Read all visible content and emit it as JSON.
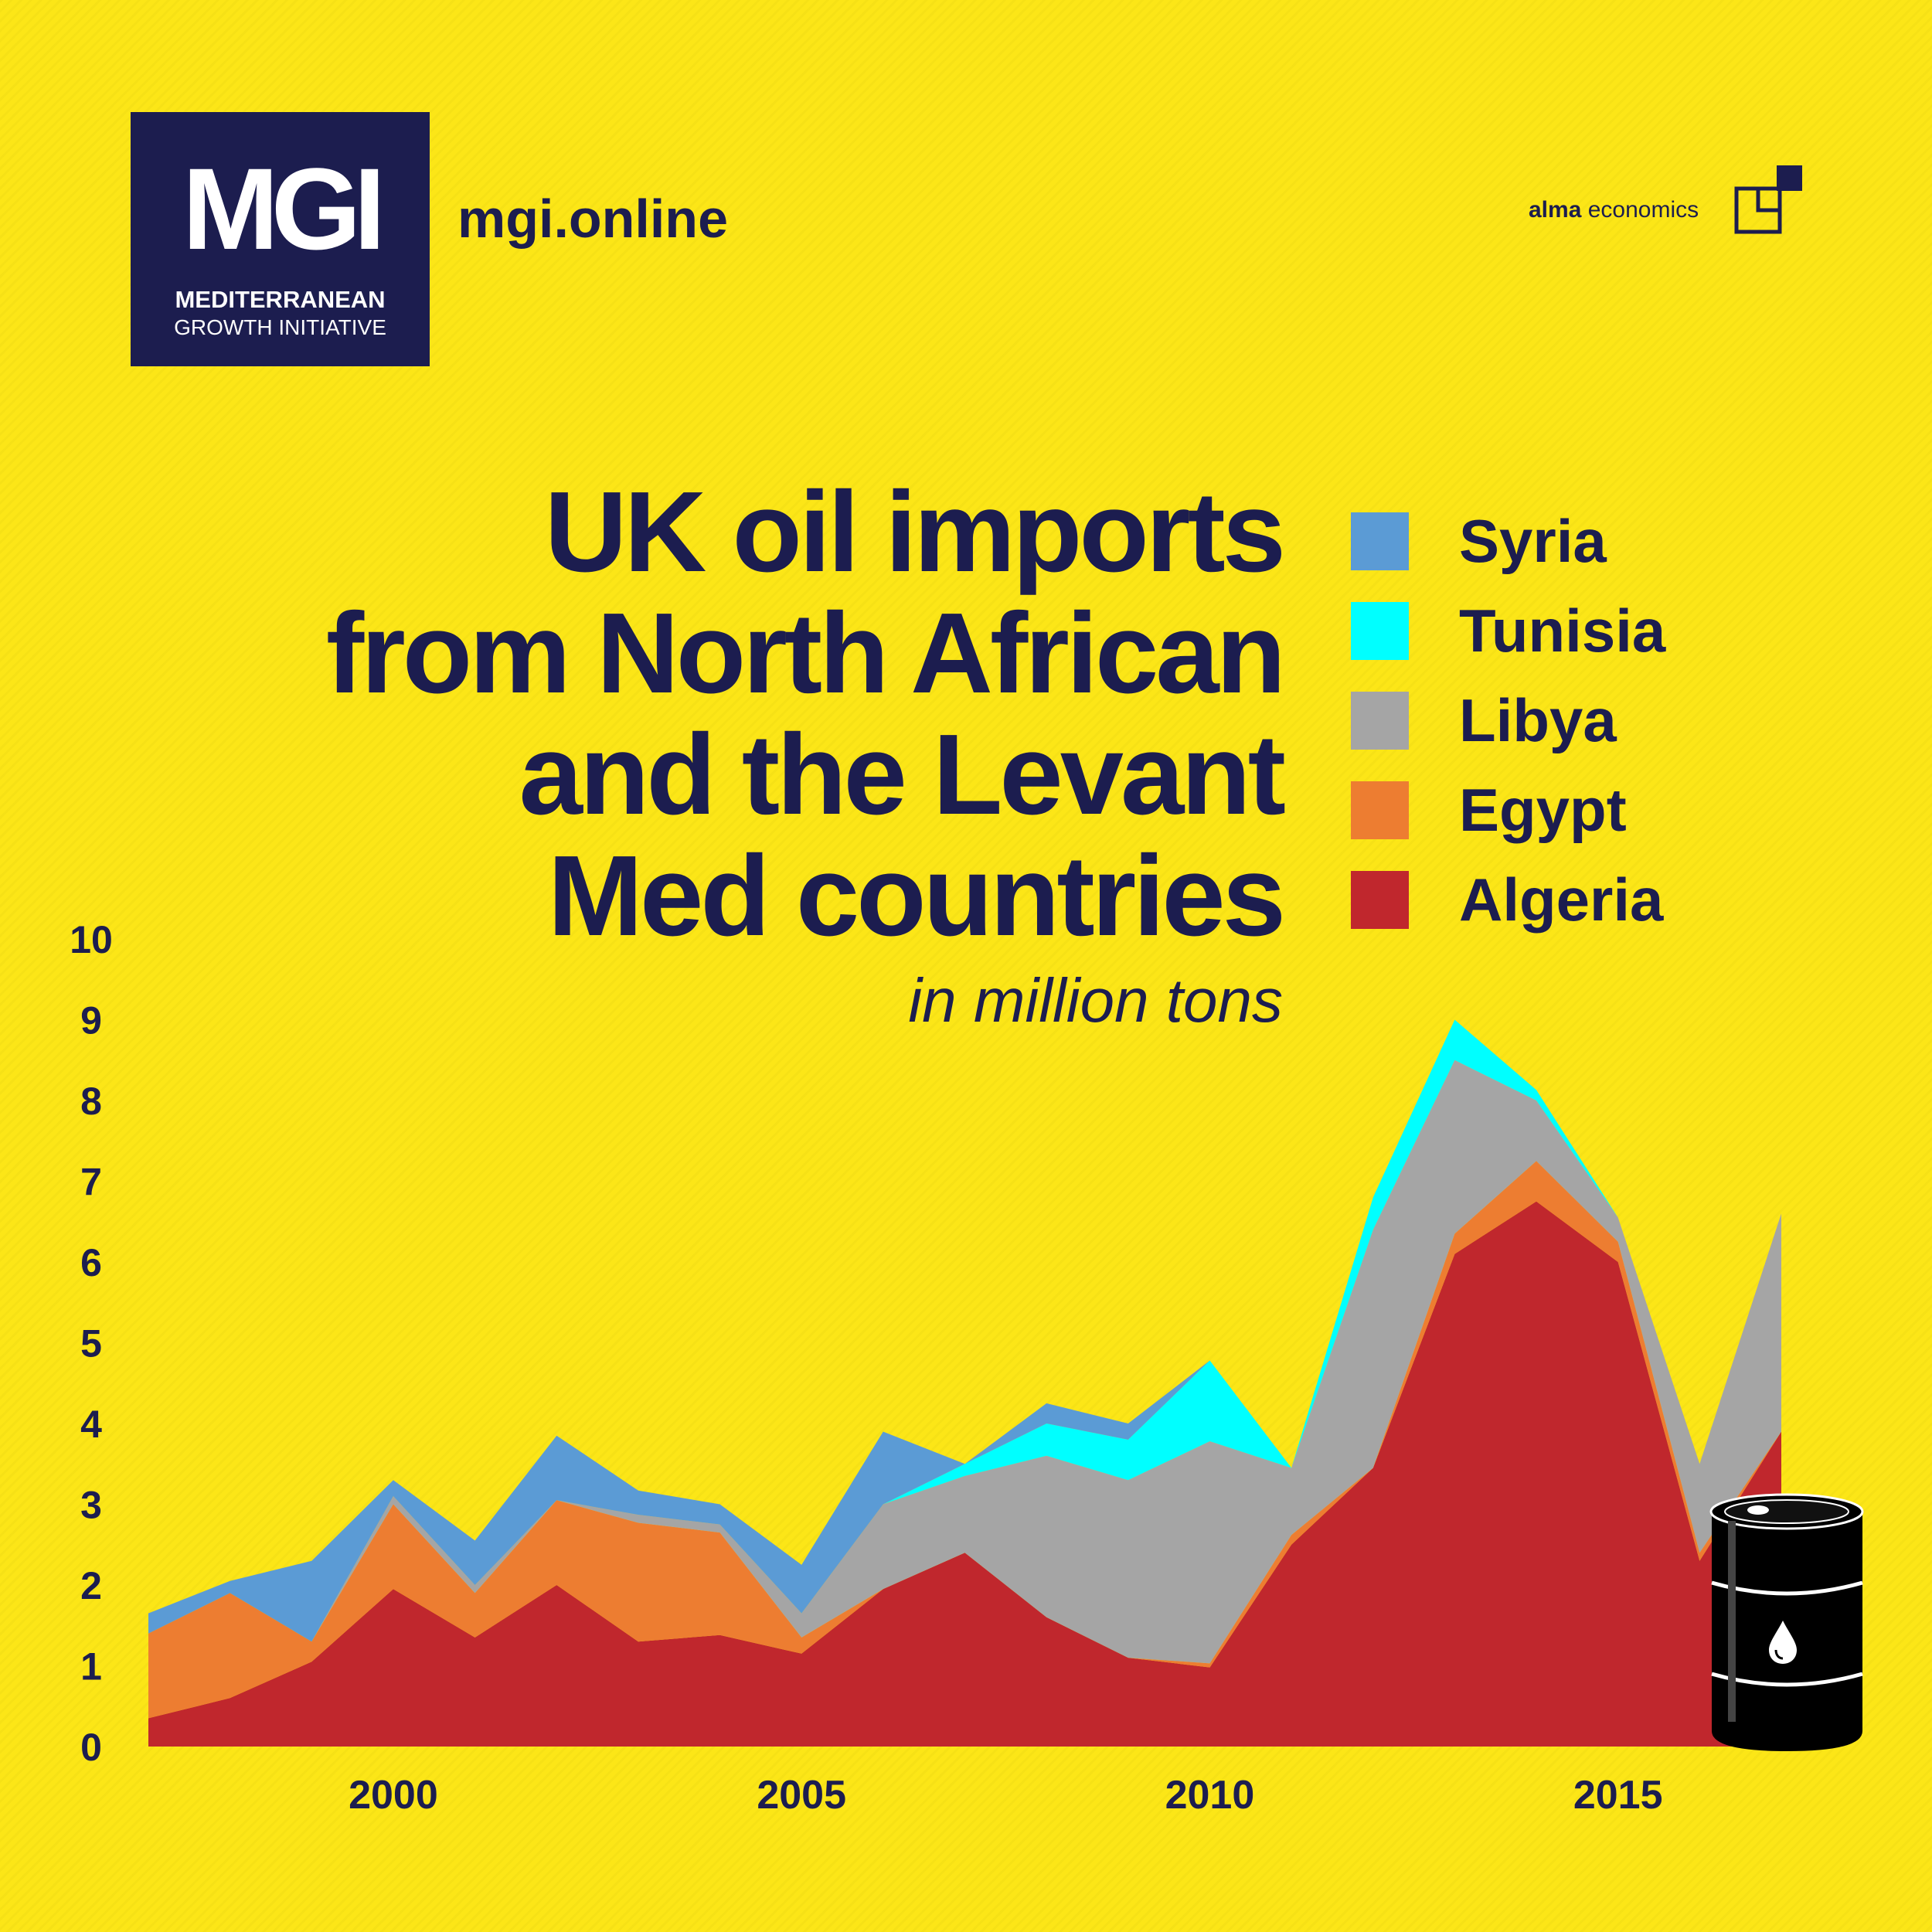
{
  "header": {
    "logo_mark": "MGI",
    "logo_line1": "MEDITERRANEAN",
    "logo_line2": "GROWTH INITIATIVE",
    "site_link": "mgi.online",
    "partner_bold": "alma",
    "partner_rest": " economics"
  },
  "colors": {
    "background": "#FCE617",
    "navy": "#1C1D4F",
    "Syria": "#5B9BD5",
    "Tunisia": "#00FFFF",
    "Libya": "#A5A5A5",
    "Egypt": "#ED7D31",
    "Algeria": "#C0272D"
  },
  "icons": [
    "square-stack-icon",
    "oil-barrel-icon",
    "oil-drop-icon"
  ],
  "chart_data": {
    "type": "area",
    "stacked": true,
    "title": [
      "UK oil imports",
      "from North African",
      "and the Levant",
      "Med countries"
    ],
    "subtitle": "in million tons",
    "xlabel": "",
    "ylabel": "",
    "x": [
      1997,
      1998,
      1999,
      2000,
      2001,
      2002,
      2003,
      2004,
      2005,
      2006,
      2007,
      2008,
      2009,
      2010,
      2011,
      2012,
      2013,
      2014,
      2015,
      2016,
      2017
    ],
    "xlim": [
      1997,
      2017
    ],
    "ylim": [
      0,
      10
    ],
    "x_ticks": [
      2000,
      2005,
      2010,
      2015
    ],
    "y_ticks": [
      0,
      1,
      2,
      3,
      4,
      5,
      6,
      7,
      8,
      9,
      10
    ],
    "grid": false,
    "legend_position": "top-right",
    "legend_order": [
      "Syria",
      "Tunisia",
      "Libya",
      "Egypt",
      "Algeria"
    ],
    "series": [
      {
        "name": "Algeria",
        "values": [
          0.35,
          0.6,
          1.05,
          1.95,
          1.35,
          2.0,
          1.3,
          1.38,
          1.15,
          1.95,
          2.4,
          1.6,
          1.1,
          0.98,
          2.5,
          3.45,
          6.1,
          6.75,
          6.0,
          2.3,
          3.9
        ]
      },
      {
        "name": "Egypt",
        "values": [
          1.05,
          1.3,
          0.25,
          1.05,
          0.55,
          1.05,
          1.47,
          1.27,
          0.2,
          0.0,
          0.0,
          0.0,
          0.0,
          0.05,
          0.12,
          0.0,
          0.25,
          0.5,
          0.25,
          0.1,
          0.0
        ]
      },
      {
        "name": "Libya",
        "values": [
          0.0,
          0.0,
          0.0,
          0.1,
          0.1,
          0.0,
          0.1,
          0.1,
          0.3,
          1.05,
          0.95,
          2.0,
          2.2,
          2.75,
          0.83,
          2.95,
          2.15,
          0.75,
          0.3,
          1.1,
          2.7
        ]
      },
      {
        "name": "Tunisia",
        "values": [
          0.0,
          0.0,
          0.0,
          0.0,
          0.0,
          0.0,
          0.0,
          0.0,
          0.0,
          0.0,
          0.15,
          0.4,
          0.5,
          1.0,
          0.0,
          0.4,
          0.5,
          0.13,
          0.0,
          0.0,
          0.0
        ]
      },
      {
        "name": "Syria",
        "values": [
          0.25,
          0.15,
          1.0,
          0.2,
          0.55,
          0.8,
          0.3,
          0.25,
          0.6,
          0.9,
          0.0,
          0.25,
          0.2,
          0.0,
          0.0,
          0.0,
          0.0,
          0.0,
          0.0,
          0.0,
          0.0
        ]
      }
    ]
  }
}
